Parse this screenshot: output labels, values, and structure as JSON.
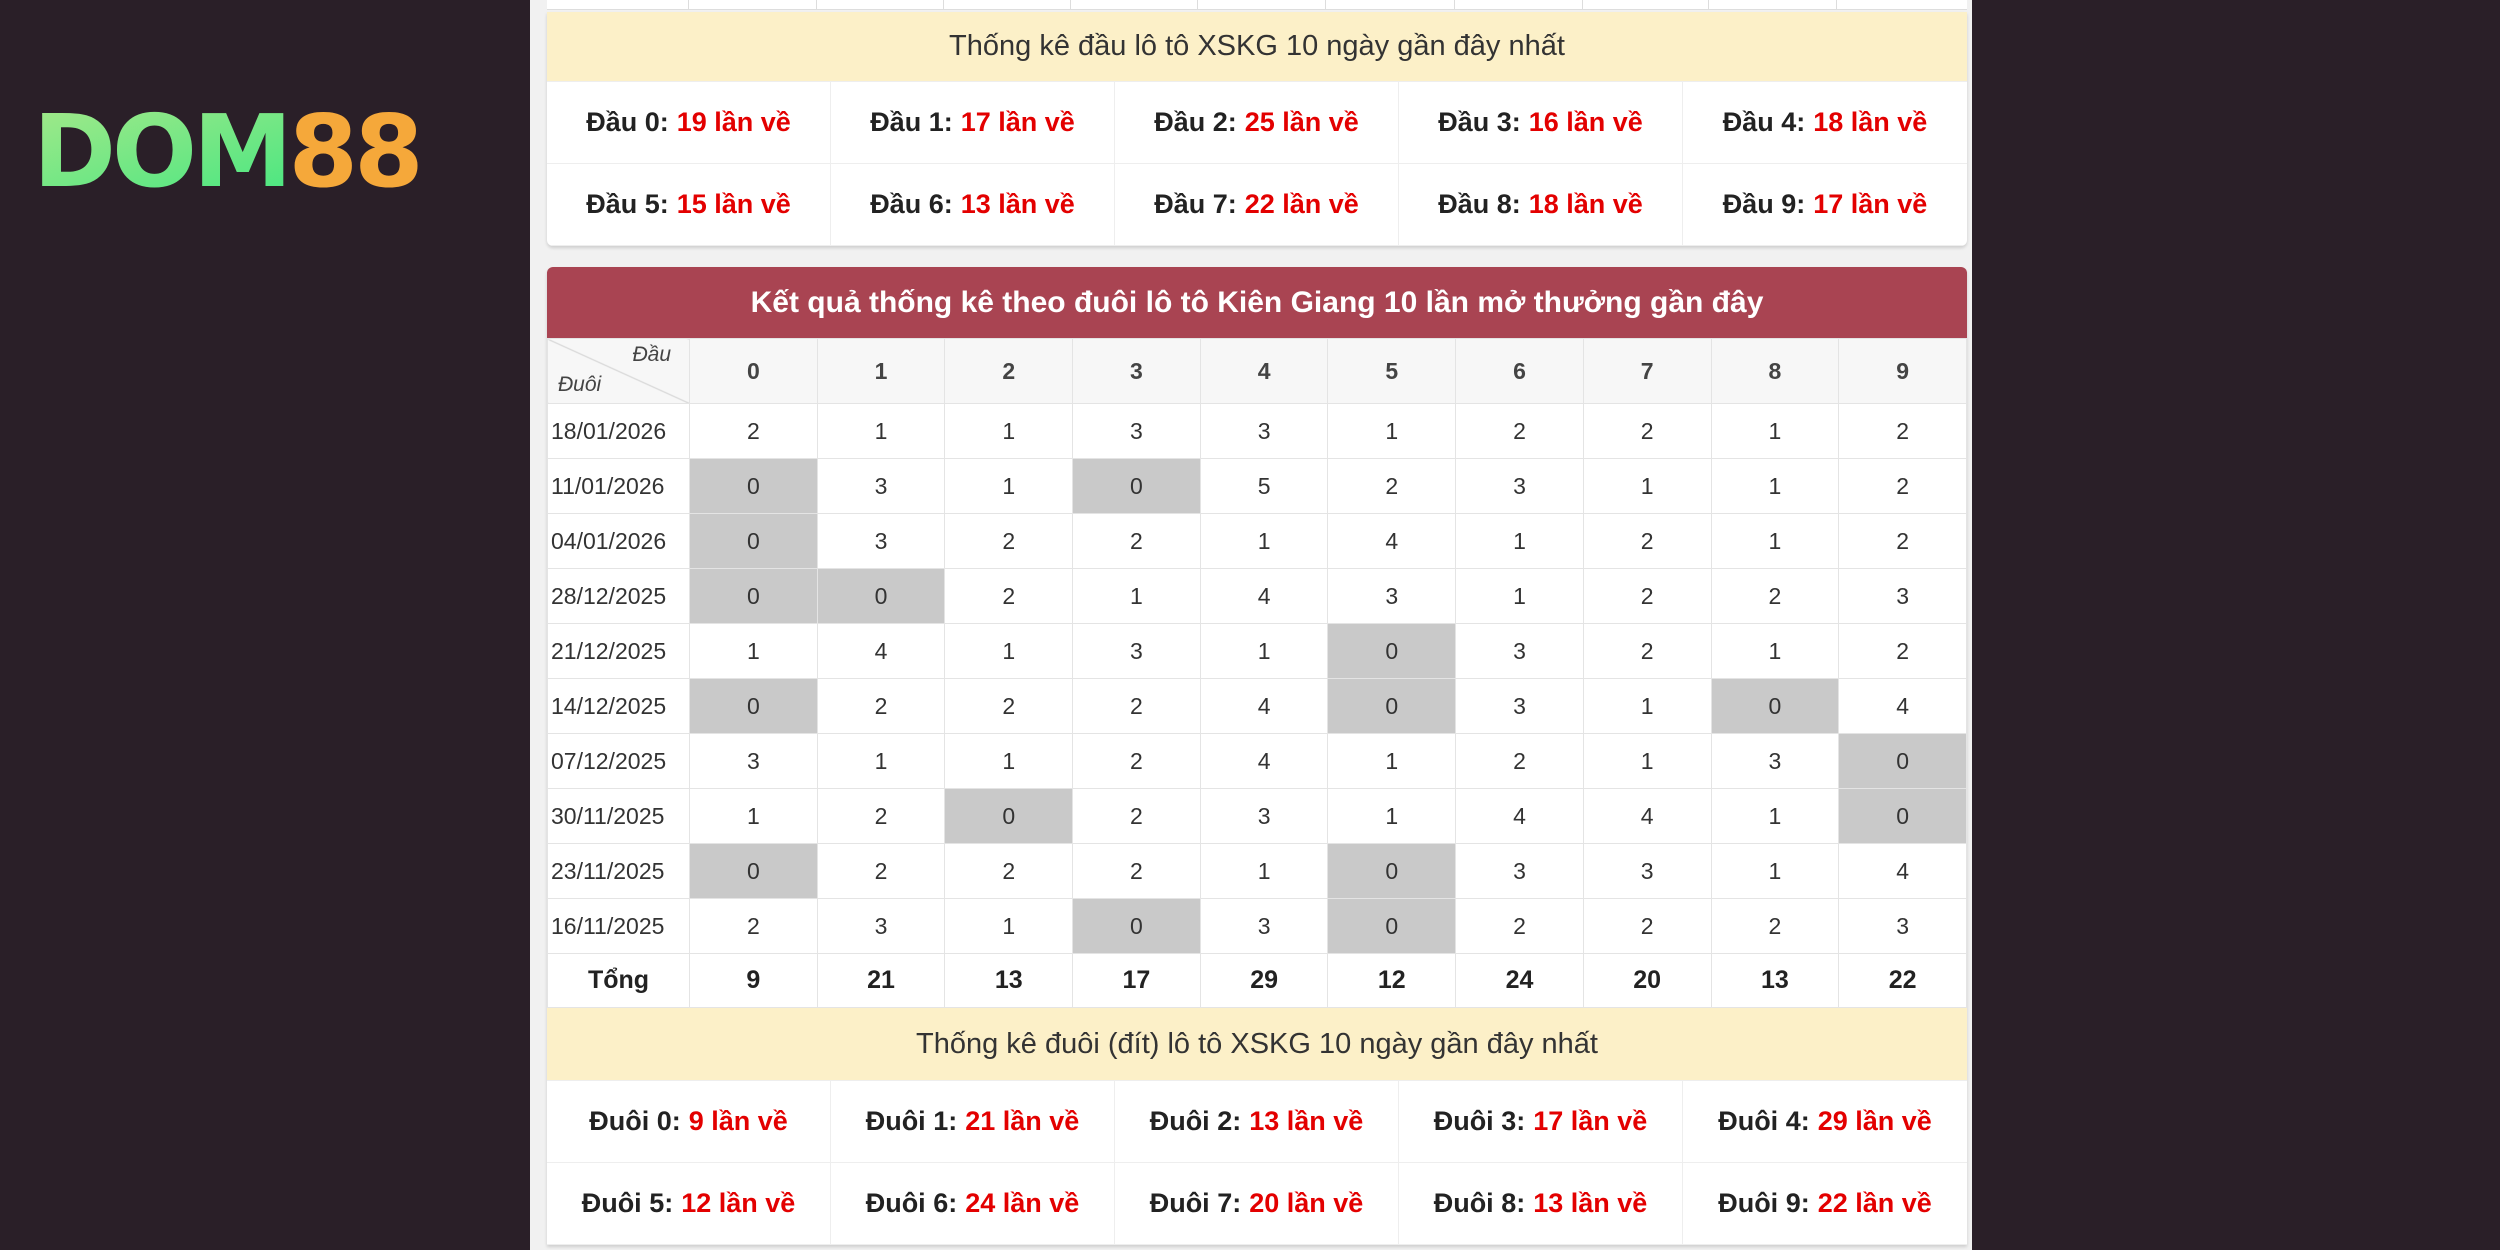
{
  "logo": {
    "text_main": "DOM",
    "text_accent": "88",
    "colors": {
      "main_start": "#a8e88a",
      "main_end": "#2ee67e",
      "accent": "#f5a83a"
    }
  },
  "colors": {
    "header_red": "#a94452",
    "header_yellow": "#fcf0c8",
    "value_red": "#e30000",
    "zero_cell": "#c9c9c9"
  },
  "dau_stats": {
    "title": "Thống kê đầu lô tô XSKG 10 ngày gần đây nhất",
    "items": [
      {
        "label": "Đầu 0:",
        "value": "19 lần về"
      },
      {
        "label": "Đầu 1:",
        "value": "17 lần về"
      },
      {
        "label": "Đầu 2:",
        "value": "25 lần về"
      },
      {
        "label": "Đầu 3:",
        "value": "16 lần về"
      },
      {
        "label": "Đầu 4:",
        "value": "18 lần về"
      },
      {
        "label": "Đầu 5:",
        "value": "15 lần về"
      },
      {
        "label": "Đầu 6:",
        "value": "13 lần về"
      },
      {
        "label": "Đầu 7:",
        "value": "22 lần về"
      },
      {
        "label": "Đầu 8:",
        "value": "18 lần về"
      },
      {
        "label": "Đầu 9:",
        "value": "17 lần về"
      }
    ]
  },
  "duoi_table": {
    "title": "Kết quả thống kê theo đuôi lô tô Kiên Giang 10 lần mở thưởng gần đây",
    "corner_top": "Đầu",
    "corner_bottom": "Đuôi",
    "columns": [
      "0",
      "1",
      "2",
      "3",
      "4",
      "5",
      "6",
      "7",
      "8",
      "9"
    ],
    "rows": [
      {
        "date": "18/01/2026",
        "values": [
          2,
          1,
          1,
          3,
          3,
          1,
          2,
          2,
          1,
          2
        ]
      },
      {
        "date": "11/01/2026",
        "values": [
          0,
          3,
          1,
          0,
          5,
          2,
          3,
          1,
          1,
          2
        ]
      },
      {
        "date": "04/01/2026",
        "values": [
          0,
          3,
          2,
          2,
          1,
          4,
          1,
          2,
          1,
          2
        ]
      },
      {
        "date": "28/12/2025",
        "values": [
          0,
          0,
          2,
          1,
          4,
          3,
          1,
          2,
          2,
          3
        ]
      },
      {
        "date": "21/12/2025",
        "values": [
          1,
          4,
          1,
          3,
          1,
          0,
          3,
          2,
          1,
          2
        ]
      },
      {
        "date": "14/12/2025",
        "values": [
          0,
          2,
          2,
          2,
          4,
          0,
          3,
          1,
          0,
          4
        ]
      },
      {
        "date": "07/12/2025",
        "values": [
          3,
          1,
          1,
          2,
          4,
          1,
          2,
          1,
          3,
          0
        ]
      },
      {
        "date": "30/11/2025",
        "values": [
          1,
          2,
          0,
          2,
          3,
          1,
          4,
          4,
          1,
          0
        ]
      },
      {
        "date": "23/11/2025",
        "values": [
          0,
          2,
          2,
          2,
          1,
          0,
          3,
          3,
          1,
          4
        ]
      },
      {
        "date": "16/11/2025",
        "values": [
          2,
          3,
          1,
          0,
          3,
          0,
          2,
          2,
          2,
          3
        ]
      }
    ],
    "total_label": "Tổng",
    "totals": [
      9,
      21,
      13,
      17,
      29,
      12,
      24,
      20,
      13,
      22
    ]
  },
  "duoi_stats": {
    "title": "Thống kê đuôi (đít) lô tô XSKG 10 ngày gần đây nhất",
    "items": [
      {
        "label": "Đuôi 0:",
        "value": "9 lần về"
      },
      {
        "label": "Đuôi 1:",
        "value": "21 lần về"
      },
      {
        "label": "Đuôi 2:",
        "value": "13 lần về"
      },
      {
        "label": "Đuôi 3:",
        "value": "17 lần về"
      },
      {
        "label": "Đuôi 4:",
        "value": "29 lần về"
      },
      {
        "label": "Đuôi 5:",
        "value": "12 lần về"
      },
      {
        "label": "Đuôi 6:",
        "value": "24 lần về"
      },
      {
        "label": "Đuôi 7:",
        "value": "20 lần về"
      },
      {
        "label": "Đuôi 8:",
        "value": "13 lần về"
      },
      {
        "label": "Đuôi 9:",
        "value": "22 lần về"
      }
    ]
  }
}
